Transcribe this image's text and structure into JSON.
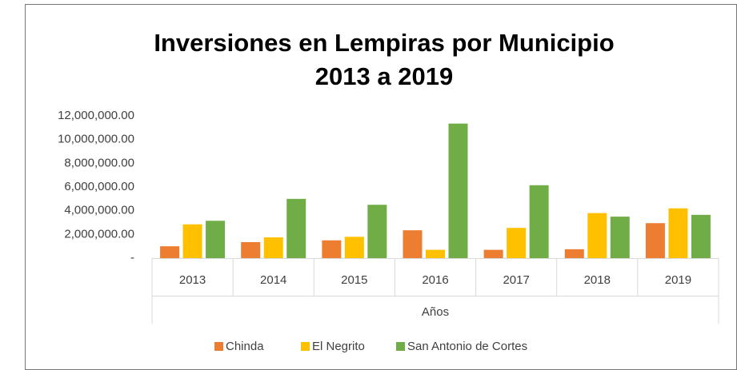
{
  "chart_data": {
    "type": "bar",
    "title": "Inversiones en Lempiras por Municipio",
    "subtitle": "2013 a 2019",
    "x_label": "Años",
    "categories": [
      "2013",
      "2014",
      "2015",
      "2016",
      "2017",
      "2018",
      "2019"
    ],
    "series": [
      {
        "name": "Chinda",
        "color": "#ed7d31",
        "values": [
          1000000,
          1350000,
          1500000,
          2350000,
          700000,
          750000,
          2950000
        ]
      },
      {
        "name": "El Negrito",
        "color": "#ffc000",
        "values": [
          2850000,
          1750000,
          1800000,
          700000,
          2550000,
          3800000,
          4200000
        ]
      },
      {
        "name": "San Antonio de Cortes",
        "color": "#70ad47",
        "values": [
          3150000,
          5000000,
          4500000,
          11350000,
          6150000,
          3500000,
          3650000
        ]
      }
    ],
    "ylim": [
      0,
      12000000
    ],
    "yticks": [
      {
        "value": 0,
        "label": "-"
      },
      {
        "value": 2000000,
        "label": "2,000,000.00"
      },
      {
        "value": 4000000,
        "label": "4,000,000.00"
      },
      {
        "value": 6000000,
        "label": "6,000,000.00"
      },
      {
        "value": 8000000,
        "label": "8,000,000.00"
      },
      {
        "value": 10000000,
        "label": "10,000,000.00"
      },
      {
        "value": 12000000,
        "label": "12,000,000.00"
      }
    ],
    "legend": "bottom"
  }
}
